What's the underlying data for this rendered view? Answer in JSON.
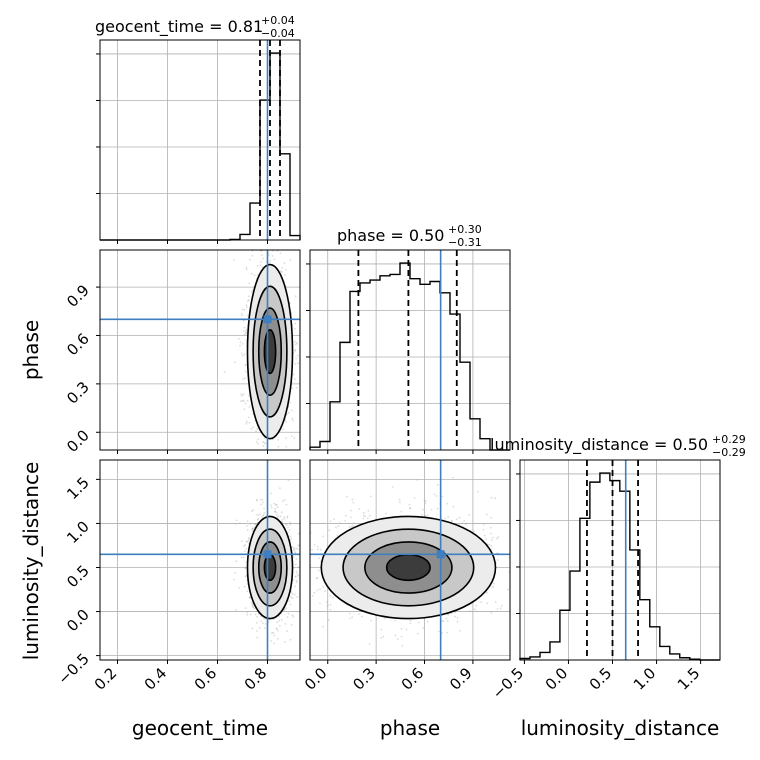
{
  "figure": {
    "truth_color": "#3f7fbf",
    "panel_titles": [
      {
        "param": "geocent_time",
        "median": "0.81",
        "plus": "+0.04",
        "minus": "−0.04"
      },
      {
        "param": "phase",
        "median": "0.50",
        "plus": "+0.30",
        "minus": "−0.31"
      },
      {
        "param": "luminosity_distance",
        "median": "0.50",
        "plus": "+0.29",
        "minus": "−0.29"
      }
    ],
    "xlabels": [
      "geocent_time",
      "phase",
      "luminosity_distance"
    ],
    "ylabels": [
      "phase",
      "luminosity_distance"
    ]
  },
  "chart_data": {
    "type": "corner",
    "parameters": [
      "geocent_time",
      "phase",
      "luminosity_distance"
    ],
    "truths": {
      "geocent_time": 0.8,
      "phase": 0.7,
      "luminosity_distance": 0.65
    },
    "ranges": {
      "geocent_time": [
        0.13,
        0.93
      ],
      "phase": [
        -0.11,
        1.13
      ],
      "luminosity_distance": [
        -0.55,
        1.72
      ]
    },
    "ticks": {
      "geocent_time": [
        0.2,
        0.4,
        0.6,
        0.8
      ],
      "phase": [
        0.0,
        0.3,
        0.6,
        0.9
      ],
      "luminosity_distance": [
        -0.5,
        0.0,
        0.5,
        1.0,
        1.5
      ]
    },
    "tick_labels": {
      "geocent_time": [
        "0.2",
        "0.4",
        "0.6",
        "0.8"
      ],
      "phase": [
        "0.0",
        "0.3",
        "0.6",
        "0.9"
      ],
      "luminosity_distance": [
        "−0.5",
        "0.0",
        "0.5",
        "1.0",
        "1.5"
      ]
    },
    "quantiles": {
      "geocent_time": [
        0.77,
        0.81,
        0.85
      ],
      "phase": [
        0.19,
        0.5,
        0.8
      ],
      "luminosity_distance": [
        0.21,
        0.5,
        0.79
      ]
    },
    "histograms": {
      "geocent_time": {
        "edges": [
          0.13,
          0.17,
          0.21,
          0.25,
          0.29,
          0.33,
          0.37,
          0.41,
          0.45,
          0.49,
          0.53,
          0.57,
          0.61,
          0.65,
          0.69,
          0.73,
          0.77,
          0.81,
          0.85,
          0.89,
          0.93
        ],
        "counts": [
          0,
          0,
          0,
          0,
          0,
          0,
          0,
          0,
          0,
          0,
          0,
          0,
          0,
          5,
          50,
          330,
          1250,
          1670,
          770,
          40
        ]
      },
      "phase": {
        "edges": [
          -0.11,
          -0.048,
          0.014,
          0.076,
          0.138,
          0.2,
          0.262,
          0.324,
          0.386,
          0.448,
          0.51,
          0.572,
          0.634,
          0.696,
          0.758,
          0.82,
          0.882,
          0.944,
          1.006,
          1.068,
          1.13
        ],
        "counts": [
          10,
          30,
          170,
          380,
          560,
          590,
          600,
          615,
          620,
          660,
          605,
          585,
          595,
          555,
          480,
          310,
          110,
          40,
          0,
          0
        ]
      },
      "luminosity_distance": {
        "edges": [
          -0.55,
          -0.437,
          -0.323,
          -0.21,
          -0.097,
          0.017,
          0.13,
          0.243,
          0.357,
          0.47,
          0.583,
          0.697,
          0.81,
          0.923,
          1.037,
          1.15,
          1.263,
          1.377,
          1.49,
          1.603,
          1.72
        ],
        "counts": [
          10,
          20,
          50,
          120,
          330,
          590,
          940,
          1180,
          1240,
          1190,
          1120,
          730,
          400,
          220,
          90,
          40,
          15,
          5,
          0,
          0
        ]
      }
    },
    "scatter_centers": {
      "geocent_time-phase": [
        0.81,
        0.5
      ],
      "geocent_time-luminosity_distance": [
        0.81,
        0.5
      ],
      "phase-luminosity_distance": [
        0.5,
        0.5
      ]
    },
    "grid": true
  }
}
